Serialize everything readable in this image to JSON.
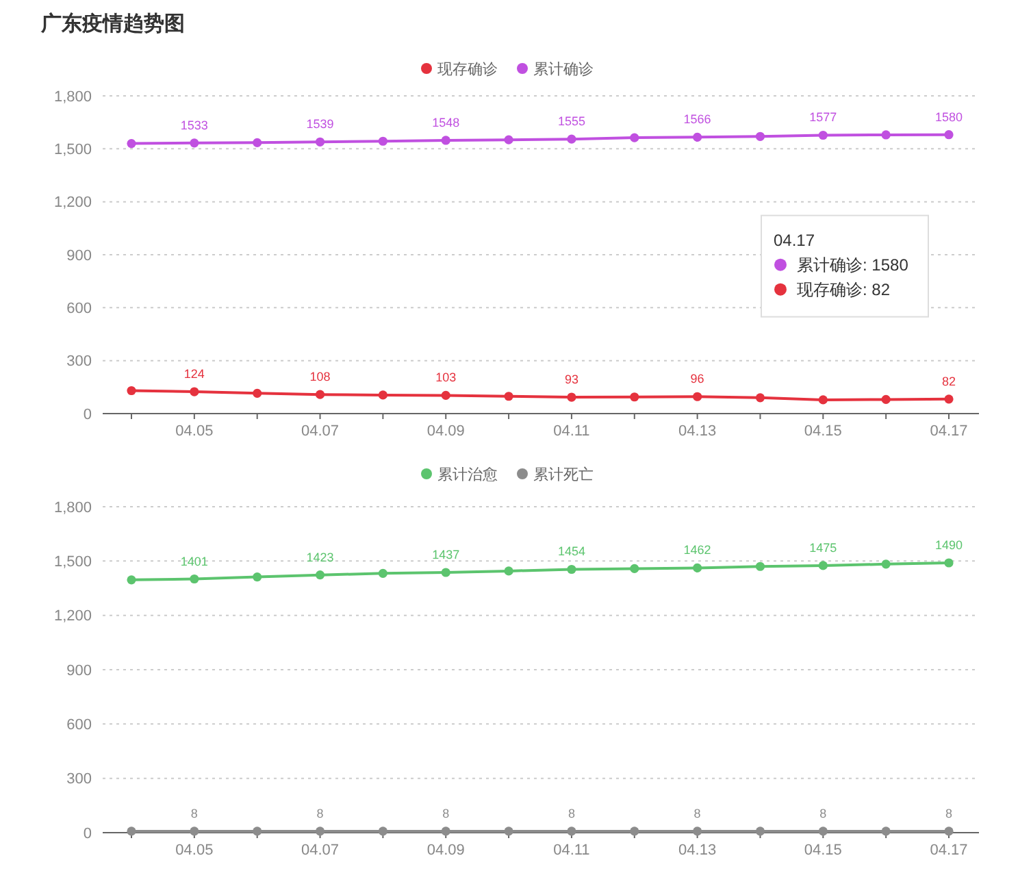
{
  "chart_data": [
    {
      "type": "line",
      "title": "广东疫情趋势图",
      "categories": [
        null,
        "04.05",
        null,
        "04.07",
        null,
        "04.09",
        null,
        "04.11",
        null,
        "04.13",
        null,
        "04.15",
        null,
        "04.17"
      ],
      "ylim": [
        0,
        1800
      ],
      "yticks": [
        0,
        {
          "value": 300,
          "label": "300"
        },
        {
          "value": 600,
          "label": "600"
        },
        {
          "value": 900,
          "label": "900"
        },
        {
          "value": 1200,
          "label": "1,200"
        },
        {
          "value": 1500,
          "label": "1,500"
        },
        {
          "value": 1800,
          "label": "1,800"
        }
      ],
      "grid": "y",
      "legend": "top",
      "marker": "circle",
      "series": [
        {
          "name": "现存确诊",
          "color": "#e5323e",
          "values": [
            130,
            124,
            115,
            108,
            105,
            103,
            98,
            93,
            94,
            96,
            90,
            78,
            80,
            82
          ],
          "value_labels": [
            null,
            "124",
            null,
            "108",
            null,
            "103",
            null,
            "93",
            null,
            "96",
            null,
            null,
            null,
            "82"
          ]
        },
        {
          "name": "累计确诊",
          "color": "#c050e0",
          "values": [
            1530,
            1533,
            1535,
            1539,
            1543,
            1548,
            1551,
            1555,
            1563,
            1566,
            1570,
            1577,
            1579,
            1580
          ],
          "value_labels": [
            null,
            "1533",
            null,
            "1539",
            null,
            "1548",
            null,
            "1555",
            null,
            "1566",
            null,
            "1577",
            null,
            "1580"
          ]
        }
      ],
      "annotations": [
        "04.17",
        "累计确诊: 1580",
        "现存确诊: 82"
      ]
    },
    {
      "type": "line",
      "categories": [
        null,
        "04.05",
        null,
        "04.07",
        null,
        "04.09",
        null,
        "04.11",
        null,
        "04.13",
        null,
        "04.15",
        null,
        "04.17"
      ],
      "ylim": [
        0,
        1800
      ],
      "yticks": [
        0,
        {
          "value": 300,
          "label": "300"
        },
        {
          "value": 600,
          "label": "600"
        },
        {
          "value": 900,
          "label": "900"
        },
        {
          "value": 1200,
          "label": "1,200"
        },
        {
          "value": 1500,
          "label": "1,500"
        },
        {
          "value": 1800,
          "label": "1,800"
        }
      ],
      "grid": "y",
      "legend": "top",
      "marker": "circle",
      "series": [
        {
          "name": "累计治愈",
          "color": "#5cc46e",
          "values": [
            1396,
            1401,
            1412,
            1423,
            1432,
            1437,
            1445,
            1454,
            1458,
            1462,
            1470,
            1475,
            1483,
            1490
          ],
          "value_labels": [
            null,
            "1401",
            null,
            "1423",
            null,
            "1437",
            null,
            "1454",
            null,
            "1462",
            null,
            "1475",
            null,
            "1490"
          ]
        },
        {
          "name": "累计死亡",
          "color": "#8c8c8c",
          "values": [
            8,
            8,
            8,
            8,
            8,
            8,
            8,
            8,
            8,
            8,
            8,
            8,
            8,
            8
          ],
          "value_labels": [
            null,
            "8",
            null,
            "8",
            null,
            "8",
            null,
            "8",
            null,
            "8",
            null,
            "8",
            null,
            "8"
          ]
        }
      ]
    }
  ]
}
